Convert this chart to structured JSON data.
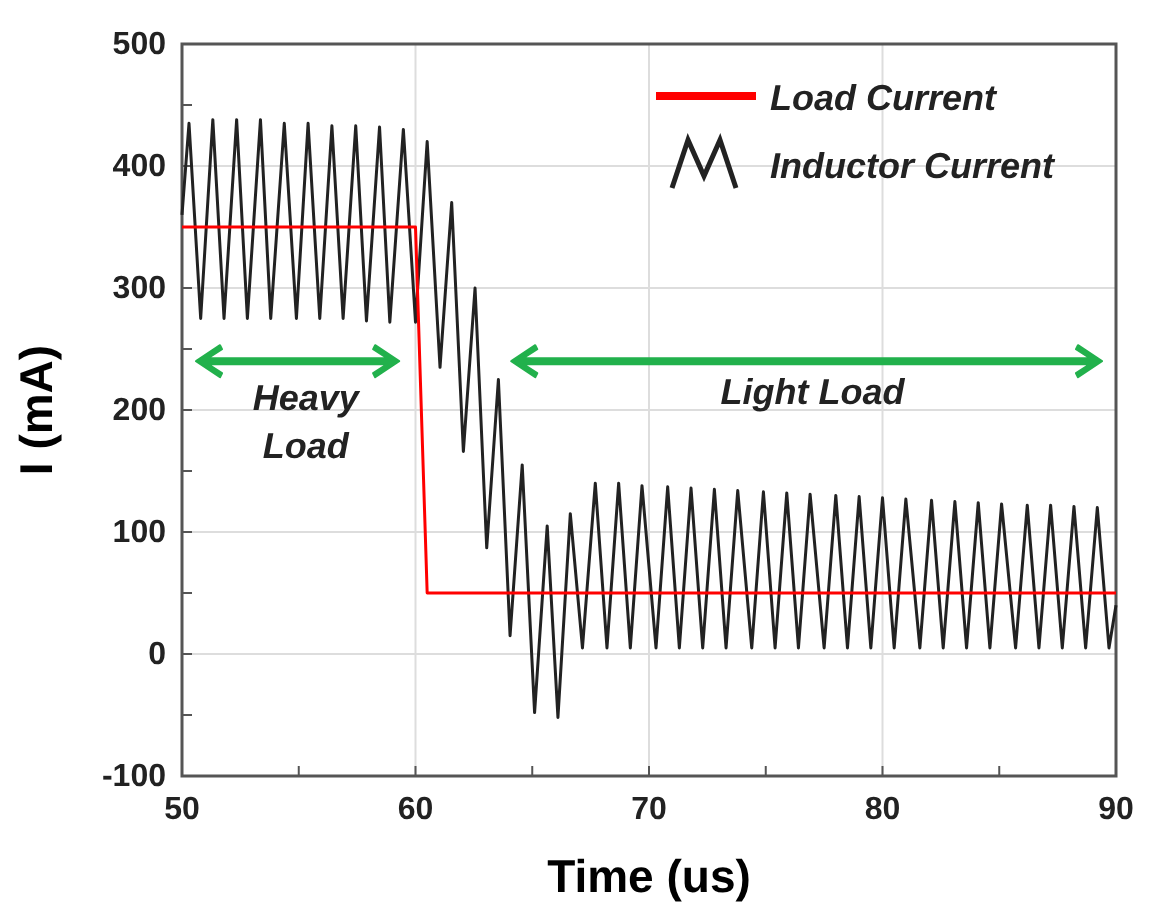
{
  "chart_data": {
    "type": "line",
    "xlabel": "Time (us)",
    "ylabel": "I (mA)",
    "xlim": [
      50,
      90
    ],
    "xticks": [
      50,
      {
        "value": 55,
        "label": null
      },
      60,
      {
        "value": 65,
        "label": null
      },
      70,
      {
        "value": 75,
        "label": null
      },
      80,
      {
        "value": 85,
        "label": null
      },
      90
    ],
    "ylim": [
      -100,
      500
    ],
    "yticks": [
      -100,
      {
        "value": -50,
        "label": null
      },
      0,
      {
        "value": 50,
        "label": null
      },
      100,
      {
        "value": 150,
        "label": null
      },
      200,
      {
        "value": 250,
        "label": null
      },
      300,
      {
        "value": 350,
        "label": null
      },
      400,
      {
        "value": 450,
        "label": null
      },
      500
    ],
    "grid": true,
    "legend": "top right",
    "line_style": "solid",
    "marker": "none",
    "series": [
      {
        "name": "Load Current",
        "color": "#ff0000",
        "x": [
          50,
          60,
          60.5,
          90
        ],
        "values": [
          350,
          350,
          50,
          50
        ]
      },
      {
        "name": "Inductor Current",
        "color": "#222222",
        "x": [
          50,
          50.3,
          50.8,
          51.32,
          51.8,
          52.34,
          52.8,
          53.36,
          53.8,
          54.38,
          54.9,
          55.4,
          55.9,
          56.42,
          56.9,
          57.44,
          57.9,
          58.46,
          58.9,
          59.48,
          60.0,
          60.5,
          61.05,
          61.55,
          62.05,
          62.55,
          63.05,
          63.55,
          64.05,
          64.57,
          65.1,
          65.64,
          66.1,
          66.63,
          67.15,
          67.7,
          68.2,
          68.7,
          69.2,
          69.7,
          70.3,
          70.8,
          71.3,
          71.8,
          72.3,
          72.8,
          73.3,
          73.8,
          74.4,
          74.9,
          75.4,
          75.9,
          76.4,
          76.9,
          77.5,
          78.0,
          78.5,
          79.0,
          79.5,
          80.0,
          80.5,
          81.0,
          81.6,
          82.1,
          82.6,
          83.1,
          83.6,
          84.1,
          84.6,
          85.1,
          85.7,
          86.2,
          86.7,
          87.2,
          87.7,
          88.2,
          88.7,
          89.2,
          89.7,
          90
        ],
        "values": [
          360,
          435,
          275,
          438,
          275,
          438,
          275,
          438,
          275,
          435,
          275,
          435,
          275,
          433,
          275,
          433,
          273,
          432,
          272,
          430,
          272,
          420,
          235,
          370,
          166,
          300,
          87,
          225,
          15,
          155,
          -48,
          105,
          -52,
          115,
          5,
          140,
          5,
          140,
          5,
          138,
          5,
          137,
          5,
          136,
          5,
          135,
          5,
          134,
          5,
          133,
          5,
          132,
          5,
          131,
          5,
          130,
          5,
          129,
          5,
          128,
          5,
          127,
          5,
          126,
          5,
          125,
          5,
          124,
          5,
          123,
          5,
          122,
          5,
          122,
          5,
          121,
          5,
          120,
          5,
          40
        ]
      }
    ],
    "annotations": [
      "Heavy Load",
      "Light Load"
    ]
  }
}
